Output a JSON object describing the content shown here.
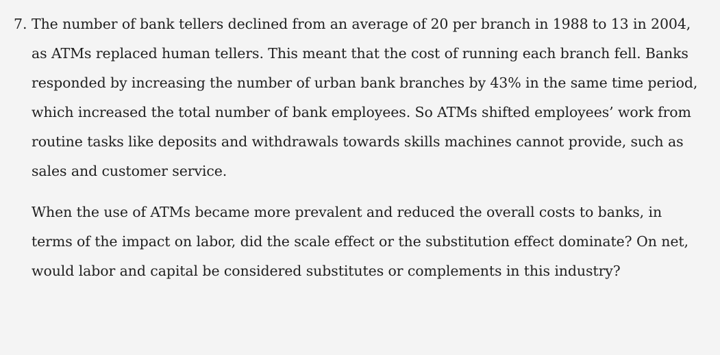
{
  "question": {
    "number": "7.",
    "paragraphs": [
      "The number of bank tellers declined from an average of 20 per branch in 1988 to 13 in 2004, as ATMs replaced human tellers. This meant that the cost of running each branch fell. Banks responded by increasing the number of urban bank branches by 43% in the same time period, which increased the total number of bank employees. So ATMs shifted employees’ work from routine tasks like deposits and withdrawals towards skills machines cannot provide, such as sales and customer service.",
      "When the use of ATMs became more prevalent and reduced the overall costs to banks, in terms of the impact on labor, did the scale effect or the substitution effect dominate? On net, would labor and capital be considered substitutes or complements in this industry?"
    ]
  }
}
